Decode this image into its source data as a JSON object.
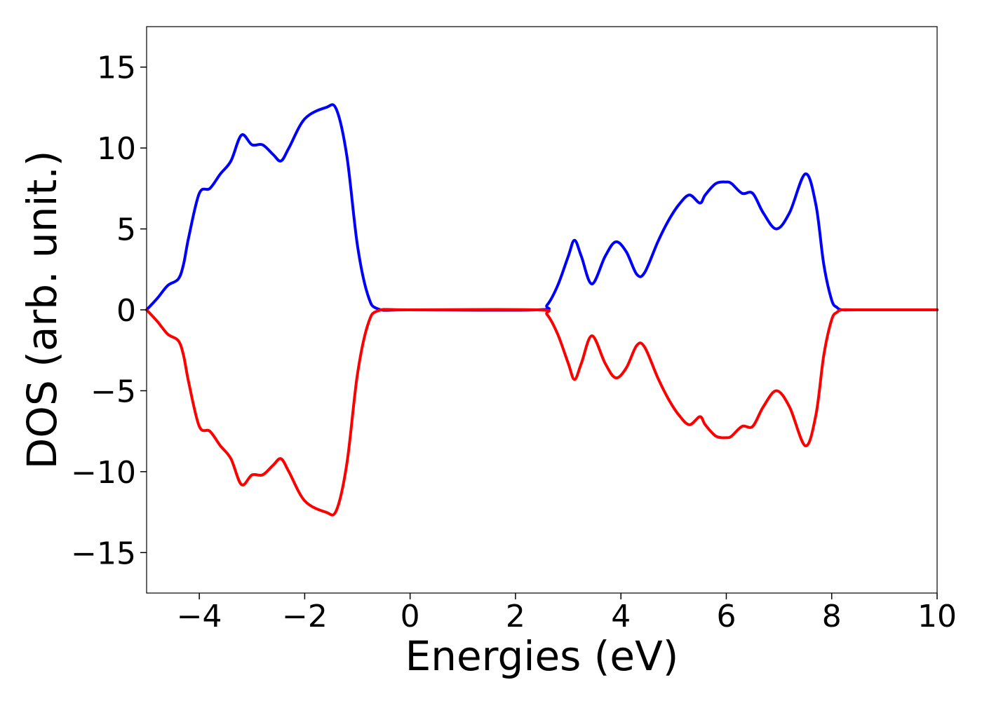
{
  "chart_data": {
    "type": "line",
    "title": "",
    "xlabel": "Energies (eV)",
    "ylabel": "DOS (arb. unit.)",
    "xlim": [
      -5,
      10
    ],
    "ylim": [
      -17.5,
      17.5
    ],
    "xticks": [
      -4,
      -2,
      0,
      2,
      4,
      6,
      8,
      10
    ],
    "xtick_labels": [
      "−4",
      "−2",
      "0",
      "2",
      "4",
      "6",
      "8",
      "10"
    ],
    "yticks": [
      15,
      10,
      5,
      0,
      -5,
      -10,
      -15
    ],
    "ytick_labels": [
      "15",
      "10",
      "5",
      "0",
      "−5",
      "−10",
      "−15"
    ],
    "grid": false,
    "legend": "none",
    "series": [
      {
        "color": "#0000ff",
        "x": [
          -5,
          -4.8,
          -4.6,
          -4.4,
          -4.3,
          -4.2,
          -4.0,
          -3.8,
          -3.6,
          -3.4,
          -3.2,
          -3.0,
          -2.8,
          -2.6,
          -2.45,
          -2.3,
          -2.0,
          -1.6,
          -1.4,
          -1.2,
          -1.0,
          -0.8,
          -0.6,
          0,
          2.4,
          2.6,
          2.8,
          3.0,
          3.12,
          3.25,
          3.45,
          3.7,
          3.9,
          4.1,
          4.3,
          4.45,
          4.7,
          4.9,
          5.1,
          5.3,
          5.5,
          5.6,
          5.8,
          6.0,
          6.1,
          6.3,
          6.5,
          6.7,
          6.95,
          7.2,
          7.5,
          7.7,
          7.85,
          8.0,
          8.1,
          8.2,
          8.5,
          10
        ],
        "y": [
          0.0,
          0.7,
          1.5,
          1.9,
          2.8,
          4.5,
          7.2,
          7.5,
          8.4,
          9.2,
          10.8,
          10.2,
          10.2,
          9.6,
          9.2,
          10.0,
          11.8,
          12.5,
          12.4,
          9.5,
          4.0,
          0.9,
          0.05,
          0.0,
          0.0,
          0.3,
          1.5,
          3.3,
          4.3,
          3.3,
          1.6,
          3.3,
          4.2,
          3.6,
          2.2,
          2.3,
          4.2,
          5.5,
          6.5,
          7.1,
          6.6,
          7.1,
          7.8,
          7.9,
          7.8,
          7.2,
          7.2,
          6.0,
          5.0,
          6.0,
          8.4,
          6.5,
          2.8,
          0.6,
          0.15,
          0.0,
          0.0,
          0.0
        ]
      },
      {
        "color": "#ff0000",
        "x": [
          -5,
          -4.8,
          -4.6,
          -4.4,
          -4.3,
          -4.2,
          -4.0,
          -3.8,
          -3.6,
          -3.4,
          -3.2,
          -3.0,
          -2.8,
          -2.6,
          -2.45,
          -2.3,
          -2.0,
          -1.6,
          -1.4,
          -1.2,
          -1.0,
          -0.8,
          -0.6,
          0,
          2.4,
          2.6,
          2.8,
          3.0,
          3.12,
          3.25,
          3.45,
          3.7,
          3.9,
          4.1,
          4.3,
          4.45,
          4.7,
          4.9,
          5.1,
          5.3,
          5.5,
          5.6,
          5.8,
          6.0,
          6.1,
          6.3,
          6.5,
          6.7,
          6.95,
          7.2,
          7.5,
          7.7,
          7.85,
          8.0,
          8.1,
          8.2,
          8.5,
          10
        ],
        "y": [
          0.0,
          -0.7,
          -1.5,
          -1.9,
          -2.8,
          -4.5,
          -7.2,
          -7.5,
          -8.4,
          -9.2,
          -10.8,
          -10.2,
          -10.2,
          -9.6,
          -9.2,
          -10.0,
          -11.8,
          -12.5,
          -12.4,
          -9.5,
          -4.0,
          -0.9,
          -0.05,
          0.0,
          0.0,
          -0.3,
          -1.5,
          -3.3,
          -4.3,
          -3.3,
          -1.6,
          -3.3,
          -4.2,
          -3.6,
          -2.2,
          -2.3,
          -4.2,
          -5.5,
          -6.5,
          -7.1,
          -6.6,
          -7.1,
          -7.8,
          -7.9,
          -7.8,
          -7.2,
          -7.2,
          -6.0,
          -5.0,
          -6.0,
          -8.4,
          -6.5,
          -2.8,
          -0.6,
          -0.15,
          0.0,
          0.0,
          0.0
        ]
      }
    ]
  }
}
